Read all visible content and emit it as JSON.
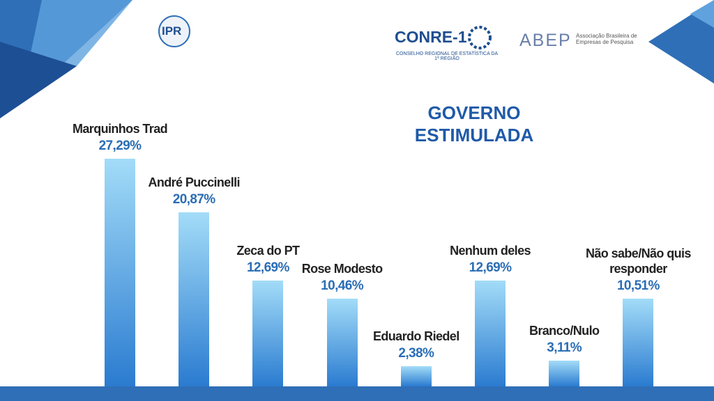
{
  "chart_data": {
    "type": "bar",
    "title": "GOVERNO ESTIMULADA",
    "categories": [
      "Marquinhos Trad",
      "André Puccinelli",
      "Zeca do PT",
      "Rose Modesto",
      "Eduardo Riedel",
      "Nenhum deles",
      "Branco/Nulo",
      "Não sabe/Não quis responder"
    ],
    "values": [
      27.29,
      20.87,
      12.69,
      10.46,
      2.38,
      12.69,
      3.11,
      10.51
    ],
    "value_labels": [
      "27,29%",
      "20,87%",
      "12,69%",
      "10,46%",
      "2,38%",
      "12,69%",
      "3,11%",
      "10,51%"
    ],
    "gradient": [
      "#a3dcf8",
      "#2a7bd0"
    ]
  },
  "logos": {
    "ipr": "IPR",
    "conre": "CONRE-1",
    "conre_sub": "CONSELHO REGIONAL DE ESTATÍSTICA DA 1ª REGIÃO",
    "abep": "ABEP",
    "abep_sub": "Associação Brasileira de Empresas de Pesquisa"
  }
}
